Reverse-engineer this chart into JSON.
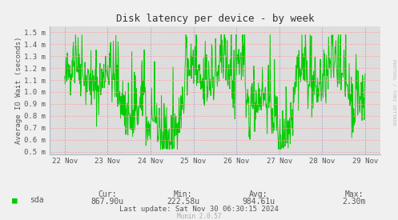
{
  "title": "Disk latency per device - by week",
  "ylabel": "Average IO Wait (seconds)",
  "bg_color": "#F0F0F0",
  "plot_bg_color": "#DDDDDD",
  "grid_color_h": "#FF9999",
  "grid_color_v": "#9999CC",
  "line_color": "#00CC00",
  "yticks_labels": [
    "0.5 m",
    "0.6 m",
    "0.7 m",
    "0.8 m",
    "0.9 m",
    "1.0 m",
    "1.1 m",
    "1.2 m",
    "1.3 m",
    "1.4 m",
    "1.5 m"
  ],
  "yticks_values": [
    0.0005,
    0.0006,
    0.0007,
    0.0008,
    0.0009,
    0.001,
    0.0011,
    0.0012,
    0.0013,
    0.0014,
    0.0015
  ],
  "ylim": [
    0.00048,
    0.00155
  ],
  "xtick_labels": [
    "22 Nov",
    "23 Nov",
    "24 Nov",
    "25 Nov",
    "26 Nov",
    "27 Nov",
    "28 Nov",
    "29 Nov"
  ],
  "legend_label": "sda",
  "legend_color": "#00CC00",
  "cur_label": "Cur:",
  "cur_val": "867.90u",
  "min_label": "Min:",
  "min_val": "222.58u",
  "avg_label": "Avg:",
  "avg_val": "984.61u",
  "max_label": "Max:",
  "max_val": "2.30m",
  "last_update": "Last update: Sat Nov 30 06:30:15 2024",
  "munin_label": "Munin 2.0.57",
  "watermark": "RRDTOOL / TOBI OETIKER",
  "font_color": "#555555",
  "title_color": "#333333",
  "axis_color": "#AAAAAA",
  "seed": 42,
  "n_points": 700
}
